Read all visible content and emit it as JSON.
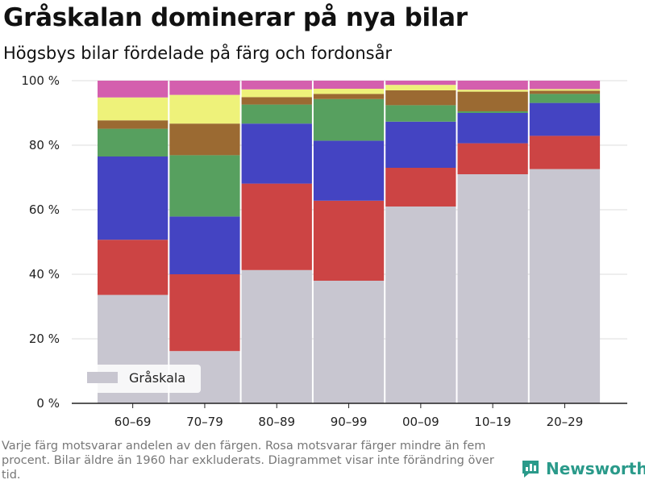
{
  "header": {
    "title": "Gråskalan dominerar på nya bilar",
    "subtitle": "Högsbys bilar fördelade på färg och fordonsår"
  },
  "footer": {
    "note": "Varje färg motsvarar andelen av den färgen. Rosa motsvarar färger mindre än fem procent. Bilar äldre än 1960 har exkluderats. Diagrammet visar inte förändring över tid.",
    "brand": "Newsworthy",
    "brand_icon": "bar-chart-logo-icon",
    "brand_color": "#2a9a8a"
  },
  "chart_data": {
    "type": "bar",
    "stacked": true,
    "title": "Gråskalan dominerar på nya bilar",
    "subtitle": "Högsbys bilar fördelade på färg och fordonsår",
    "categories": [
      "60–69",
      "70–79",
      "80–89",
      "90–99",
      "00–09",
      "10–19",
      "20–29"
    ],
    "ylim": [
      0,
      100
    ],
    "yticks": [
      0,
      20,
      40,
      60,
      80,
      100
    ],
    "ytick_labels": [
      "0 %",
      "20 %",
      "40 %",
      "60 %",
      "80 %",
      "100 %"
    ],
    "grid": "horizontal",
    "legend": {
      "placement": "bottom-left",
      "entries": [
        "Gråskala"
      ]
    },
    "series": [
      {
        "name": "Gråskala",
        "color": "#c8c6d0",
        "values": [
          33.6,
          16.2,
          41.3,
          38.0,
          61.0,
          71.0,
          72.6
        ]
      },
      {
        "color": "#cc4444",
        "values": [
          17.1,
          23.8,
          26.8,
          24.8,
          12.0,
          9.6,
          10.3
        ]
      },
      {
        "color": "#4444c2",
        "values": [
          25.8,
          17.9,
          18.6,
          18.6,
          14.3,
          9.4,
          10.2
        ]
      },
      {
        "color": "#57a05f",
        "values": [
          8.6,
          19.0,
          5.9,
          12.9,
          5.1,
          0.5,
          2.8
        ]
      },
      {
        "color": "#9b6a32",
        "values": [
          2.6,
          9.8,
          2.3,
          1.6,
          4.6,
          6.1,
          1.0
        ]
      },
      {
        "color": "#eef27a",
        "values": [
          7.1,
          8.9,
          2.4,
          1.6,
          1.7,
          0.6,
          0.5
        ]
      },
      {
        "color": "#d45fae",
        "values": [
          5.2,
          4.4,
          2.7,
          2.5,
          1.3,
          2.8,
          2.6
        ]
      }
    ]
  }
}
